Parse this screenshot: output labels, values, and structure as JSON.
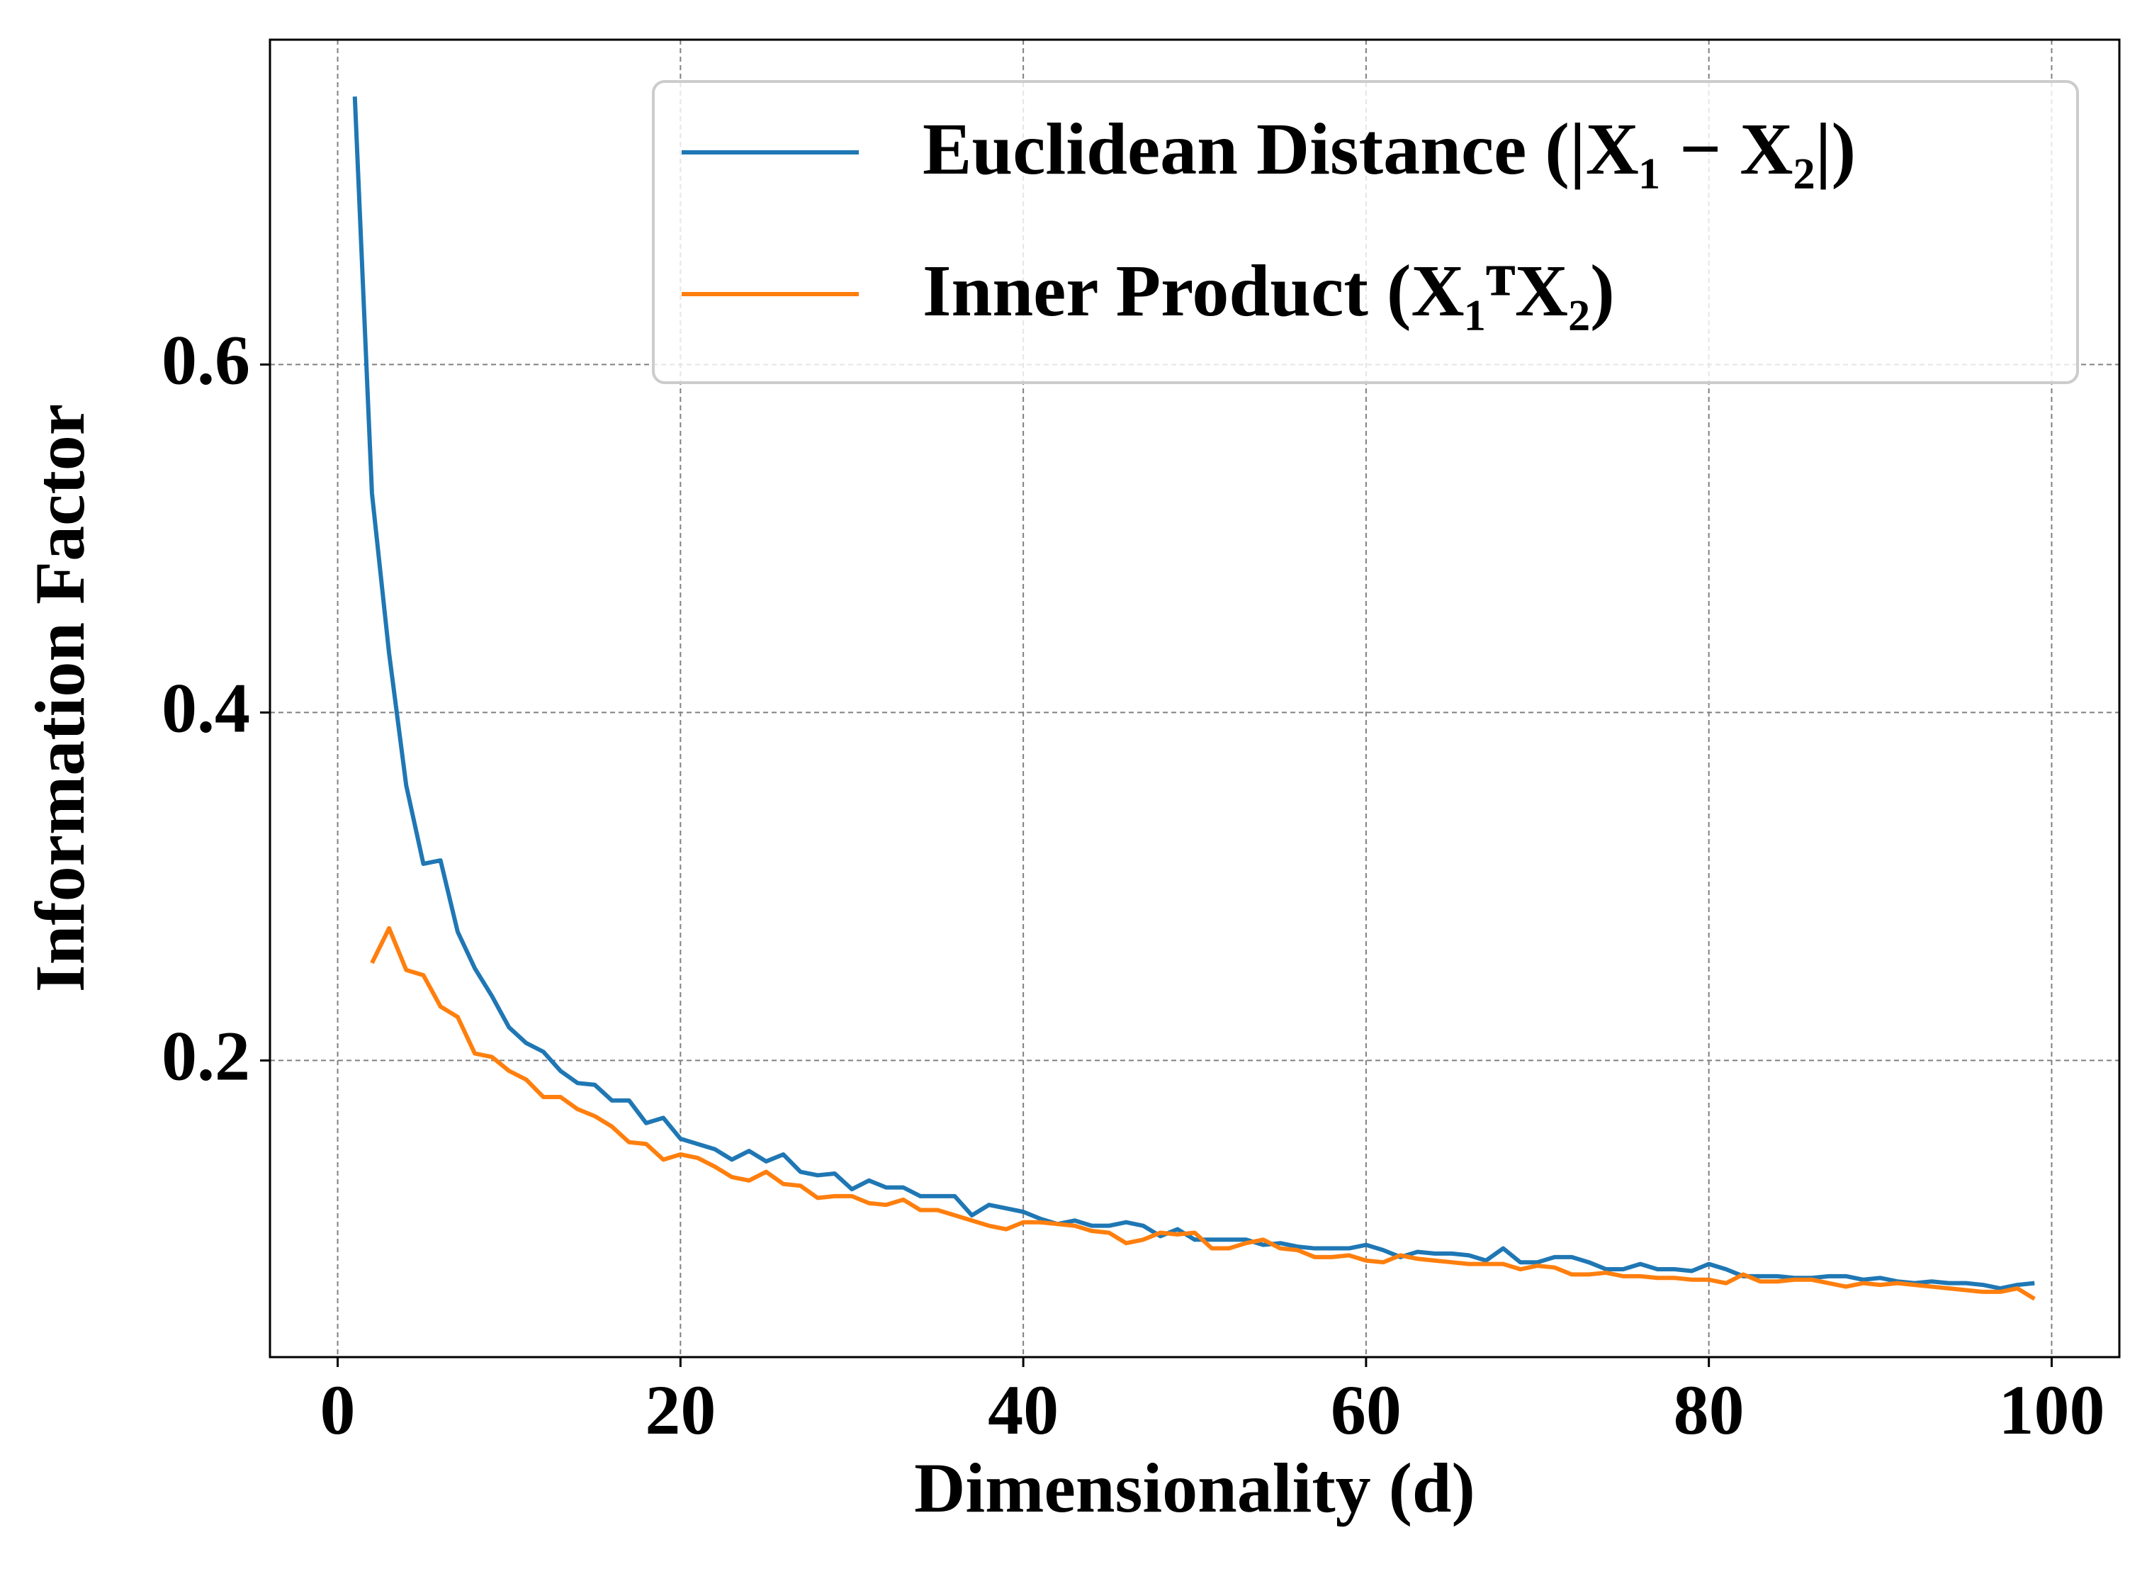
{
  "chart_data": {
    "type": "line",
    "xlabel": "Dimensionality (d)",
    "ylabel": "Information Factor",
    "xlim": [
      -3.95,
      103.95
    ],
    "ylim": [
      0.0295,
      0.7867
    ],
    "xticks": [
      0,
      20,
      40,
      60,
      80,
      100
    ],
    "yticks": [
      0.2,
      0.4,
      0.6
    ],
    "grid": true,
    "legend": "upper right",
    "series": [
      {
        "name": "Euclidean Distance (|X₁ − X₂|)",
        "color": "#1f77b4",
        "x": [
          1,
          2,
          3,
          4,
          5,
          6,
          7,
          8,
          9,
          10,
          11,
          12,
          13,
          14,
          15,
          16,
          17,
          18,
          19,
          20,
          21,
          22,
          23,
          24,
          25,
          26,
          27,
          28,
          29,
          30,
          31,
          32,
          33,
          34,
          35,
          36,
          37,
          38,
          39,
          40,
          41,
          42,
          43,
          44,
          45,
          46,
          47,
          48,
          49,
          50,
          51,
          52,
          53,
          54,
          55,
          56,
          57,
          58,
          59,
          60,
          61,
          62,
          63,
          64,
          65,
          66,
          67,
          68,
          69,
          70,
          71,
          72,
          73,
          74,
          75,
          76,
          77,
          78,
          79,
          80,
          81,
          82,
          83,
          84,
          85,
          86,
          87,
          88,
          89,
          90,
          91,
          92,
          93,
          94,
          95,
          96,
          97,
          98,
          99
        ],
        "values": [
          0.754,
          0.526,
          0.434,
          0.358,
          0.313,
          0.315,
          0.274,
          0.253,
          0.237,
          0.219,
          0.21,
          0.205,
          0.194,
          0.187,
          0.186,
          0.177,
          0.177,
          0.164,
          0.167,
          0.155,
          0.152,
          0.149,
          0.143,
          0.148,
          0.142,
          0.146,
          0.136,
          0.134,
          0.135,
          0.126,
          0.131,
          0.127,
          0.127,
          0.122,
          0.122,
          0.122,
          0.111,
          0.117,
          0.115,
          0.113,
          0.109,
          0.106,
          0.108,
          0.105,
          0.105,
          0.107,
          0.105,
          0.099,
          0.103,
          0.097,
          0.097,
          0.097,
          0.097,
          0.094,
          0.095,
          0.093,
          0.092,
          0.092,
          0.092,
          0.094,
          0.091,
          0.087,
          0.09,
          0.089,
          0.089,
          0.088,
          0.085,
          0.092,
          0.084,
          0.084,
          0.087,
          0.087,
          0.084,
          0.08,
          0.08,
          0.083,
          0.08,
          0.08,
          0.079,
          0.083,
          0.08,
          0.076,
          0.076,
          0.076,
          0.075,
          0.075,
          0.076,
          0.076,
          0.074,
          0.075,
          0.073,
          0.072,
          0.073,
          0.072,
          0.072,
          0.071,
          0.069,
          0.071,
          0.072
        ]
      },
      {
        "name": "Inner Product (X₁ᵀX₂)",
        "color": "#ff7f0e",
        "x": [
          2,
          3,
          4,
          5,
          6,
          7,
          8,
          9,
          10,
          11,
          12,
          13,
          14,
          15,
          16,
          17,
          18,
          19,
          20,
          21,
          22,
          23,
          24,
          25,
          26,
          27,
          28,
          29,
          30,
          31,
          32,
          33,
          34,
          35,
          36,
          37,
          38,
          39,
          40,
          41,
          42,
          43,
          44,
          45,
          46,
          47,
          48,
          49,
          50,
          51,
          52,
          53,
          54,
          55,
          56,
          57,
          58,
          59,
          60,
          61,
          62,
          63,
          64,
          65,
          66,
          67,
          68,
          69,
          70,
          71,
          72,
          73,
          74,
          75,
          76,
          77,
          78,
          79,
          80,
          81,
          82,
          83,
          84,
          85,
          86,
          87,
          88,
          89,
          90,
          91,
          92,
          93,
          94,
          95,
          96,
          97,
          98,
          99
        ],
        "values": [
          0.256,
          0.276,
          0.252,
          0.249,
          0.231,
          0.225,
          0.204,
          0.202,
          0.194,
          0.189,
          0.179,
          0.179,
          0.172,
          0.168,
          0.162,
          0.153,
          0.152,
          0.143,
          0.146,
          0.144,
          0.139,
          0.133,
          0.131,
          0.136,
          0.129,
          0.128,
          0.121,
          0.122,
          0.122,
          0.118,
          0.117,
          0.12,
          0.114,
          0.114,
          0.111,
          0.108,
          0.105,
          0.103,
          0.107,
          0.107,
          0.106,
          0.105,
          0.102,
          0.101,
          0.095,
          0.097,
          0.101,
          0.1,
          0.101,
          0.092,
          0.092,
          0.095,
          0.097,
          0.092,
          0.091,
          0.087,
          0.087,
          0.088,
          0.085,
          0.084,
          0.088,
          0.086,
          0.085,
          0.084,
          0.083,
          0.083,
          0.083,
          0.08,
          0.082,
          0.081,
          0.077,
          0.077,
          0.078,
          0.076,
          0.076,
          0.075,
          0.075,
          0.074,
          0.074,
          0.072,
          0.077,
          0.073,
          0.073,
          0.074,
          0.074,
          0.072,
          0.07,
          0.072,
          0.071,
          0.072,
          0.071,
          0.07,
          0.069,
          0.068,
          0.067,
          0.067,
          0.069,
          0.063
        ]
      }
    ]
  }
}
